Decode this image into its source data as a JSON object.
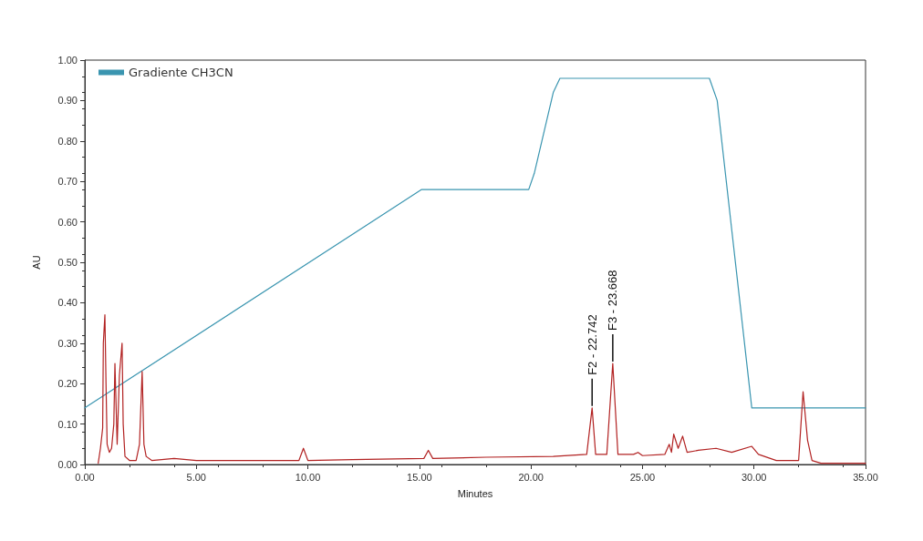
{
  "chart_data": {
    "type": "line",
    "xlabel": "Minutes",
    "ylabel": "AU",
    "xlim": [
      0,
      35
    ],
    "xticks": [
      {
        "value": 0,
        "label": "0.00"
      },
      {
        "value": 5,
        "label": "5.00"
      },
      {
        "value": 10,
        "label": "10.00"
      },
      {
        "value": 15,
        "label": "15.00"
      },
      {
        "value": 20,
        "label": "20.00"
      },
      {
        "value": 25,
        "label": "25.00"
      },
      {
        "value": 30,
        "label": "30.00"
      },
      {
        "value": 35,
        "label": "35.00"
      }
    ],
    "ylim": [
      0,
      1
    ],
    "yticks": [
      {
        "value": 0,
        "label": "0.00"
      },
      {
        "value": 0.1,
        "label": "0.10"
      },
      {
        "value": 0.2,
        "label": "0.20"
      },
      {
        "value": 0.3,
        "label": "0.30"
      },
      {
        "value": 0.4,
        "label": "0.40"
      },
      {
        "value": 0.5,
        "label": "0.50"
      },
      {
        "value": 0.6,
        "label": "0.60"
      },
      {
        "value": 0.7,
        "label": "0.70"
      },
      {
        "value": 0.8,
        "label": "0.80"
      },
      {
        "value": 0.9,
        "label": "0.90"
      },
      {
        "value": 1,
        "label": "1.00"
      }
    ],
    "grid": false,
    "legend": "top left",
    "marker": "none",
    "line_style": "solid",
    "series": [
      {
        "name": "Gradiente CH3CN",
        "color": "#3a95b0",
        "x": [
          0,
          15.1,
          19.9,
          20.15,
          21.0,
          21.3,
          28.0,
          28.35,
          29.9,
          35
        ],
        "values": [
          0.14,
          0.68,
          0.68,
          0.72,
          0.92,
          0.955,
          0.955,
          0.9,
          0.14,
          0.14
        ]
      },
      {
        "color": "#b22222",
        "x": [
          0.6,
          0.7,
          0.8,
          0.83,
          0.9,
          0.95,
          1.0,
          1.1,
          1.2,
          1.3,
          1.35,
          1.45,
          1.55,
          1.67,
          1.72,
          1.8,
          2.0,
          2.3,
          2.45,
          2.57,
          2.65,
          2.75,
          3.0,
          4.0,
          5.0,
          6.0,
          7.0,
          9.6,
          9.8,
          10.0,
          12.0,
          15.2,
          15.4,
          15.6,
          18.0,
          21.0,
          22.5,
          22.742,
          22.9,
          23.4,
          23.668,
          23.9,
          24.6,
          24.8,
          25.0,
          26.0,
          26.2,
          26.3,
          26.4,
          26.6,
          26.8,
          27.0,
          27.5,
          28.3,
          29.0,
          29.9,
          30.2,
          31.0,
          32.0,
          32.2,
          32.4,
          32.6,
          33.0,
          35
        ],
        "values": [
          0.003,
          0.04,
          0.09,
          0.3,
          0.37,
          0.2,
          0.05,
          0.03,
          0.04,
          0.1,
          0.25,
          0.05,
          0.22,
          0.3,
          0.1,
          0.02,
          0.01,
          0.01,
          0.05,
          0.23,
          0.05,
          0.02,
          0.01,
          0.015,
          0.01,
          0.01,
          0.01,
          0.01,
          0.04,
          0.01,
          0.012,
          0.015,
          0.035,
          0.015,
          0.018,
          0.02,
          0.025,
          0.14,
          0.025,
          0.025,
          0.25,
          0.025,
          0.025,
          0.03,
          0.022,
          0.025,
          0.05,
          0.03,
          0.075,
          0.04,
          0.07,
          0.03,
          0.035,
          0.04,
          0.03,
          0.045,
          0.025,
          0.01,
          0.01,
          0.18,
          0.06,
          0.01,
          0.003,
          0.003
        ]
      }
    ],
    "annotations": [
      {
        "text": "F2 - 22.742",
        "x": 22.742,
        "y": 0.14
      },
      {
        "text": "F3 - 23.668",
        "x": 23.668,
        "y": 0.25
      }
    ]
  }
}
